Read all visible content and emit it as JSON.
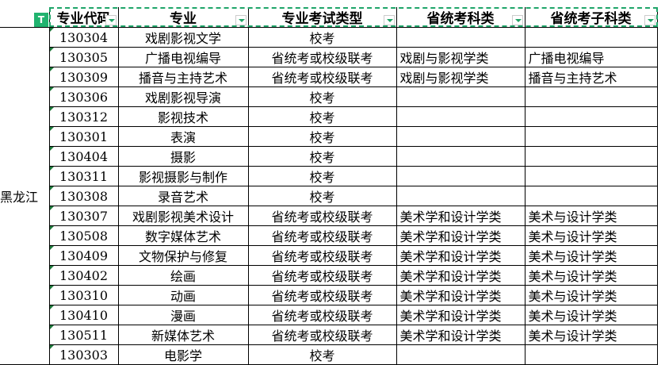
{
  "headers": [
    "",
    "专业代码",
    "专业",
    "专业考试类型",
    "省统考科类",
    "省统考子科类"
  ],
  "province": "黑龙江",
  "filter_icon": "filter-icon",
  "accent": "#21a366",
  "rows": [
    [
      "130304",
      "戏剧影视文学",
      "校考",
      "",
      ""
    ],
    [
      "130305",
      "广播电视编导",
      "省统考或校级联考",
      "戏剧与影视学类",
      "广播电视编导"
    ],
    [
      "130309",
      "播音与主持艺术",
      "省统考或校级联考",
      "戏剧与影视学类",
      "播音与主持艺术"
    ],
    [
      "130306",
      "戏剧影视导演",
      "校考",
      "",
      ""
    ],
    [
      "130312",
      "影视技术",
      "校考",
      "",
      ""
    ],
    [
      "130301",
      "表演",
      "校考",
      "",
      ""
    ],
    [
      "130404",
      "摄影",
      "校考",
      "",
      ""
    ],
    [
      "130311",
      "影视摄影与制作",
      "校考",
      "",
      ""
    ],
    [
      "130308",
      "录音艺术",
      "校考",
      "",
      ""
    ],
    [
      "130307",
      "戏剧影视美术设计",
      "省统考或校级联考",
      "美术学和设计学类",
      "美术与设计学类"
    ],
    [
      "130508",
      "数字媒体艺术",
      "省统考或校级联考",
      "美术学和设计学类",
      "美术与设计学类"
    ],
    [
      "130409",
      "文物保护与修复",
      "省统考或校级联考",
      "美术学和设计学类",
      "美术与设计学类"
    ],
    [
      "130402",
      "绘画",
      "省统考或校级联考",
      "美术学和设计学类",
      "美术与设计学类"
    ],
    [
      "130310",
      "动画",
      "省统考或校级联考",
      "美术学和设计学类",
      "美术与设计学类"
    ],
    [
      "130410",
      "漫画",
      "省统考或校级联考",
      "美术学和设计学类",
      "美术与设计学类"
    ],
    [
      "130511",
      "新媒体艺术",
      "省统考或校级联考",
      "美术学和设计学类",
      "美术与设计学类"
    ],
    [
      "130303",
      "电影学",
      "校考",
      "",
      ""
    ]
  ]
}
